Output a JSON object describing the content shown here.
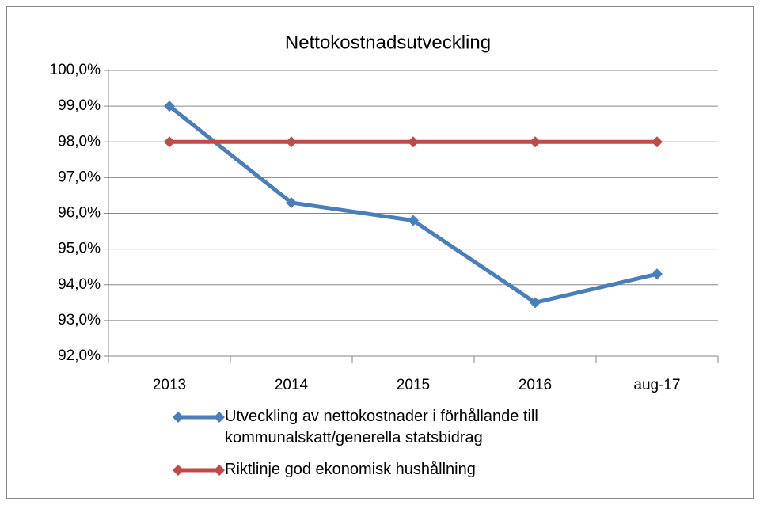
{
  "chart_data": {
    "type": "line",
    "title": "Nettokostnadsutveckling",
    "categories": [
      "2013",
      "2014",
      "2015",
      "2016",
      "aug-17"
    ],
    "series": [
      {
        "name": "Utveckling av nettokostnader i förhållande till kommunalskatt/generella statsbidrag",
        "color": "#4a7ebb",
        "values": [
          99.0,
          96.3,
          95.8,
          93.5,
          94.3
        ]
      },
      {
        "name": "Riktlinje god ekonomisk hushållning",
        "color": "#be4b48",
        "values": [
          98,
          98,
          98,
          98,
          98
        ]
      }
    ],
    "ylim": [
      92,
      100
    ],
    "yticks": [
      {
        "value": 92,
        "label": "92,0%"
      },
      {
        "value": 93,
        "label": "93,0%"
      },
      {
        "value": 94,
        "label": "94,0%"
      },
      {
        "value": 95,
        "label": "95,0%"
      },
      {
        "value": 96,
        "label": "96,0%"
      },
      {
        "value": 97,
        "label": "97,0%"
      },
      {
        "value": 98,
        "label": "98,0%"
      },
      {
        "value": 99,
        "label": "99,0%"
      },
      {
        "value": 100,
        "label": "100,0%"
      }
    ],
    "grid": true,
    "legend": "bottom"
  }
}
